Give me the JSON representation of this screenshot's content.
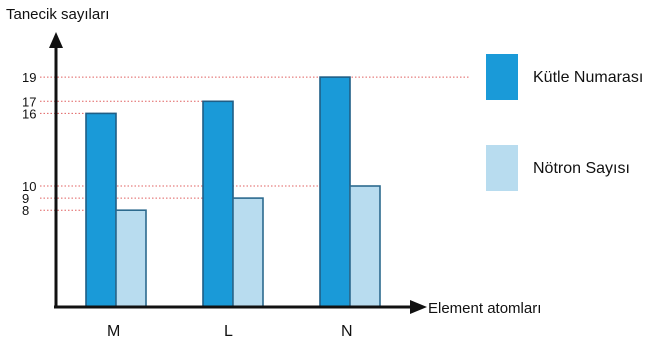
{
  "chart_data": {
    "type": "bar",
    "ylabel": "Tanecik sayıları",
    "xlabel": "Element atomları",
    "categories": [
      "M",
      "L",
      "N"
    ],
    "series": [
      {
        "name": "Kütle Numarası",
        "values": [
          16,
          17,
          19
        ],
        "color": "#1a9ad8",
        "stroke": "#1f5e86"
      },
      {
        "name": "Nötron Sayısı",
        "values": [
          8,
          9,
          10
        ],
        "color": "#b8dcef",
        "stroke": "#2c6a8e"
      }
    ],
    "y_ticks": [
      8,
      9,
      10,
      16,
      17,
      19
    ],
    "ylim": [
      0,
      19
    ],
    "grid": "dotted lines at labeled values",
    "gridline_color": "#e06060",
    "axis_color": "#111111",
    "legend_position": "right"
  }
}
